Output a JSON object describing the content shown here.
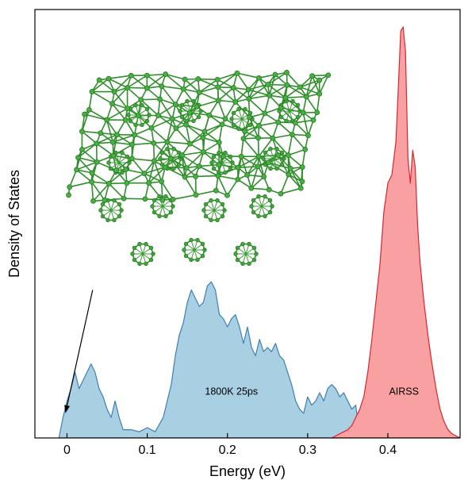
{
  "chart_data": {
    "type": "area",
    "title": "",
    "xlabel": "Energy (eV)",
    "ylabel": "Density of States",
    "xlim": [
      -0.04,
      0.49
    ],
    "ylim": [
      0,
      1.0
    ],
    "xticks": [
      0,
      0.1,
      0.2,
      0.3,
      0.4
    ],
    "xtick_labels": [
      "0",
      "0.1",
      "0.2",
      "0.3",
      "0.4"
    ],
    "y_tick_labels_shown": false,
    "grid": false,
    "series": [
      {
        "name": "1800K 25ps",
        "fill": "#a9cfe3",
        "stroke": "#3f7fb5",
        "x": [
          -0.01,
          -0.005,
          0.0,
          0.005,
          0.01,
          0.015,
          0.02,
          0.025,
          0.03,
          0.035,
          0.04,
          0.045,
          0.05,
          0.055,
          0.06,
          0.065,
          0.07,
          0.08,
          0.09,
          0.1,
          0.11,
          0.12,
          0.13,
          0.135,
          0.14,
          0.145,
          0.15,
          0.155,
          0.16,
          0.165,
          0.17,
          0.175,
          0.18,
          0.185,
          0.19,
          0.195,
          0.2,
          0.205,
          0.21,
          0.215,
          0.22,
          0.225,
          0.23,
          0.235,
          0.24,
          0.245,
          0.25,
          0.255,
          0.26,
          0.265,
          0.27,
          0.275,
          0.28,
          0.285,
          0.29,
          0.295,
          0.3,
          0.305,
          0.31,
          0.315,
          0.32,
          0.325,
          0.33,
          0.335,
          0.34,
          0.345,
          0.35,
          0.355,
          0.36,
          0.365
        ],
        "y": [
          0.0,
          0.05,
          0.09,
          0.12,
          0.16,
          0.12,
          0.14,
          0.16,
          0.18,
          0.16,
          0.12,
          0.1,
          0.07,
          0.05,
          0.09,
          0.05,
          0.02,
          0.02,
          0.015,
          0.025,
          0.015,
          0.05,
          0.13,
          0.2,
          0.25,
          0.28,
          0.33,
          0.36,
          0.34,
          0.32,
          0.33,
          0.37,
          0.38,
          0.36,
          0.3,
          0.29,
          0.27,
          0.29,
          0.3,
          0.27,
          0.23,
          0.27,
          0.22,
          0.2,
          0.24,
          0.21,
          0.22,
          0.21,
          0.23,
          0.2,
          0.19,
          0.16,
          0.13,
          0.09,
          0.07,
          0.06,
          0.1,
          0.08,
          0.09,
          0.11,
          0.09,
          0.12,
          0.13,
          0.12,
          0.1,
          0.11,
          0.09,
          0.07,
          0.08,
          0.0
        ]
      },
      {
        "name": "AIRSS",
        "fill": "#f9a0a2",
        "stroke": "#d8262e",
        "x": [
          0.33,
          0.34,
          0.345,
          0.35,
          0.355,
          0.36,
          0.365,
          0.37,
          0.375,
          0.38,
          0.385,
          0.39,
          0.395,
          0.4,
          0.405,
          0.41,
          0.413,
          0.416,
          0.419,
          0.422,
          0.425,
          0.428,
          0.431,
          0.434,
          0.437,
          0.44,
          0.445,
          0.45,
          0.455,
          0.46,
          0.465,
          0.47,
          0.475,
          0.48,
          0.485,
          0.49
        ],
        "y": [
          0.0,
          0.01,
          0.015,
          0.02,
          0.03,
          0.05,
          0.07,
          0.1,
          0.16,
          0.24,
          0.33,
          0.42,
          0.55,
          0.62,
          0.64,
          0.72,
          0.85,
          0.99,
          1.0,
          0.94,
          0.68,
          0.62,
          0.7,
          0.66,
          0.52,
          0.43,
          0.33,
          0.25,
          0.18,
          0.12,
          0.07,
          0.04,
          0.02,
          0.01,
          0.005,
          0.0
        ]
      }
    ],
    "annotations": [
      {
        "text": "1800K 25ps",
        "x": 0.205,
        "y": 0.105
      },
      {
        "text": "AIRSS",
        "x": 0.42,
        "y": 0.105
      }
    ],
    "inset": {
      "type": "image",
      "description": "green atomic structure (ball-and-stick) rhombic cell"
    },
    "arrow": {
      "from": [
        0.032,
        0.36
      ],
      "to": [
        -0.002,
        0.06
      ]
    }
  }
}
